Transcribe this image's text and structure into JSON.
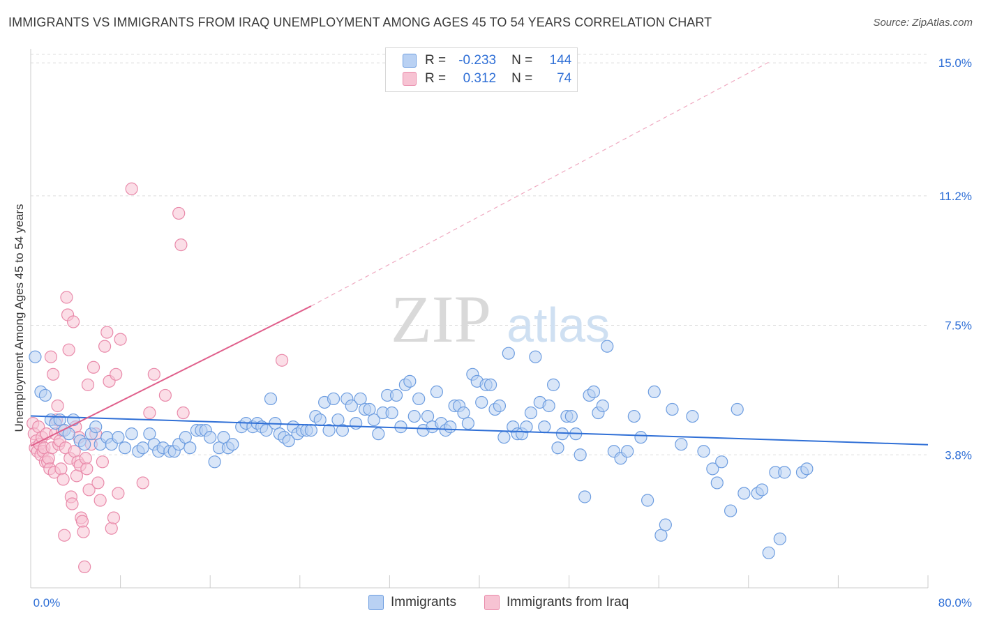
{
  "title": "IMMIGRANTS VS IMMIGRANTS FROM IRAQ UNEMPLOYMENT AMONG AGES 45 TO 54 YEARS CORRELATION CHART",
  "source": "Source: ZipAtlas.com",
  "watermark": {
    "zip": "ZIP",
    "atlas": "atlas"
  },
  "legend": {
    "r_label": "R =",
    "n_label": "N =",
    "immigrants": {
      "r": "-0.233",
      "n": "144"
    },
    "iraq": {
      "r": "0.312",
      "n": "74"
    }
  },
  "colors": {
    "blue_fill": "#b9d1f3",
    "blue_stroke": "#6d9de0",
    "blue_line": "#2f6fd6",
    "pink_fill": "#f7c3d3",
    "pink_stroke": "#e98aaa",
    "pink_line": "#e0608c",
    "tick_text": "#2f6fd6",
    "grid": "#dcdcdc"
  },
  "chart_data": {
    "type": "scatter",
    "title": "IMMIGRANTS VS IMMIGRANTS FROM IRAQ UNEMPLOYMENT AMONG AGES 45 TO 54 YEARS CORRELATION CHART",
    "xlabel": "",
    "ylabel": "Unemployment Among Ages 45 to 54 years",
    "xlim": [
      0,
      80
    ],
    "ylim": [
      0.0,
      15.4
    ],
    "x_tick_labels": [
      "0.0%",
      "80.0%"
    ],
    "y_ticks": [
      3.8,
      7.5,
      11.2,
      15.0
    ],
    "y_tick_labels": [
      "3.8%",
      "7.5%",
      "11.2%",
      "15.0%"
    ],
    "grid": true,
    "series": [
      {
        "name": "Immigrants",
        "r": -0.233,
        "n": 144,
        "trend": {
          "x": [
            0,
            80
          ],
          "y": [
            4.91,
            4.09
          ]
        },
        "points": [
          [
            0.4,
            6.6
          ],
          [
            0.9,
            5.6
          ],
          [
            1.3,
            5.5
          ],
          [
            1.8,
            4.8
          ],
          [
            2.2,
            4.7
          ],
          [
            2.6,
            4.8
          ],
          [
            3.0,
            4.5
          ],
          [
            3.4,
            4.4
          ],
          [
            3.8,
            4.8
          ],
          [
            4.4,
            4.2
          ],
          [
            4.8,
            4.1
          ],
          [
            5.4,
            4.4
          ],
          [
            5.8,
            4.6
          ],
          [
            6.2,
            4.1
          ],
          [
            6.8,
            4.3
          ],
          [
            7.2,
            4.1
          ],
          [
            7.8,
            4.3
          ],
          [
            8.4,
            4.0
          ],
          [
            9.0,
            4.4
          ],
          [
            9.6,
            3.9
          ],
          [
            10.0,
            4.0
          ],
          [
            10.6,
            4.4
          ],
          [
            11.0,
            4.1
          ],
          [
            11.4,
            3.9
          ],
          [
            11.8,
            4.0
          ],
          [
            12.4,
            3.9
          ],
          [
            12.8,
            3.9
          ],
          [
            13.2,
            4.1
          ],
          [
            13.8,
            4.3
          ],
          [
            14.2,
            4.0
          ],
          [
            14.8,
            4.5
          ],
          [
            15.2,
            4.5
          ],
          [
            15.6,
            4.5
          ],
          [
            16.0,
            4.3
          ],
          [
            16.4,
            3.6
          ],
          [
            16.8,
            4.0
          ],
          [
            17.2,
            4.3
          ],
          [
            17.6,
            4.0
          ],
          [
            18.0,
            4.1
          ],
          [
            18.8,
            4.6
          ],
          [
            19.2,
            4.7
          ],
          [
            19.8,
            4.6
          ],
          [
            20.2,
            4.7
          ],
          [
            20.6,
            4.6
          ],
          [
            21.0,
            4.5
          ],
          [
            21.4,
            5.4
          ],
          [
            21.8,
            4.7
          ],
          [
            22.2,
            4.4
          ],
          [
            22.6,
            4.3
          ],
          [
            23.0,
            4.2
          ],
          [
            23.4,
            4.6
          ],
          [
            23.8,
            4.4
          ],
          [
            24.2,
            4.5
          ],
          [
            24.6,
            4.5
          ],
          [
            25.0,
            4.5
          ],
          [
            25.4,
            4.9
          ],
          [
            25.8,
            4.8
          ],
          [
            26.2,
            5.3
          ],
          [
            26.6,
            4.5
          ],
          [
            27.0,
            5.4
          ],
          [
            27.4,
            4.8
          ],
          [
            27.8,
            4.5
          ],
          [
            28.2,
            5.4
          ],
          [
            28.6,
            5.2
          ],
          [
            29.0,
            4.7
          ],
          [
            29.4,
            5.4
          ],
          [
            29.8,
            5.1
          ],
          [
            30.2,
            5.1
          ],
          [
            30.6,
            4.8
          ],
          [
            31.0,
            4.4
          ],
          [
            31.4,
            5.0
          ],
          [
            31.8,
            5.5
          ],
          [
            32.2,
            5.0
          ],
          [
            32.6,
            5.5
          ],
          [
            33.0,
            4.6
          ],
          [
            33.4,
            5.8
          ],
          [
            33.8,
            5.9
          ],
          [
            34.2,
            4.9
          ],
          [
            34.6,
            5.4
          ],
          [
            35.0,
            4.5
          ],
          [
            35.4,
            4.9
          ],
          [
            35.8,
            4.6
          ],
          [
            36.2,
            5.6
          ],
          [
            36.6,
            4.7
          ],
          [
            37.0,
            4.5
          ],
          [
            37.4,
            4.6
          ],
          [
            37.8,
            5.2
          ],
          [
            38.2,
            5.2
          ],
          [
            38.6,
            5.0
          ],
          [
            39.0,
            4.7
          ],
          [
            39.4,
            6.1
          ],
          [
            39.8,
            5.9
          ],
          [
            40.2,
            5.3
          ],
          [
            40.6,
            5.8
          ],
          [
            41.0,
            5.8
          ],
          [
            41.4,
            5.1
          ],
          [
            41.8,
            5.2
          ],
          [
            42.2,
            4.3
          ],
          [
            42.6,
            6.7
          ],
          [
            43.0,
            4.6
          ],
          [
            43.4,
            4.4
          ],
          [
            43.8,
            4.4
          ],
          [
            44.2,
            4.6
          ],
          [
            44.6,
            5.0
          ],
          [
            45.0,
            6.6
          ],
          [
            45.4,
            5.3
          ],
          [
            45.8,
            4.6
          ],
          [
            46.2,
            5.2
          ],
          [
            46.6,
            5.8
          ],
          [
            47.0,
            4.0
          ],
          [
            47.4,
            4.4
          ],
          [
            47.8,
            4.9
          ],
          [
            48.2,
            4.9
          ],
          [
            48.6,
            4.4
          ],
          [
            49.0,
            3.8
          ],
          [
            49.4,
            2.6
          ],
          [
            49.8,
            5.5
          ],
          [
            50.2,
            5.6
          ],
          [
            50.6,
            5.0
          ],
          [
            51.0,
            5.2
          ],
          [
            51.4,
            6.9
          ],
          [
            52.0,
            3.9
          ],
          [
            52.6,
            3.7
          ],
          [
            53.2,
            3.9
          ],
          [
            53.8,
            4.9
          ],
          [
            54.4,
            4.3
          ],
          [
            55.0,
            2.5
          ],
          [
            55.6,
            5.6
          ],
          [
            56.2,
            1.5
          ],
          [
            56.6,
            1.8
          ],
          [
            57.2,
            5.1
          ],
          [
            58.0,
            4.1
          ],
          [
            59.0,
            4.9
          ],
          [
            60.0,
            3.9
          ],
          [
            60.8,
            3.4
          ],
          [
            61.2,
            3.0
          ],
          [
            61.6,
            3.6
          ],
          [
            62.4,
            2.2
          ],
          [
            63.0,
            5.1
          ],
          [
            63.6,
            2.7
          ],
          [
            64.8,
            2.7
          ],
          [
            65.2,
            2.8
          ],
          [
            65.8,
            1.0
          ],
          [
            66.4,
            3.3
          ],
          [
            66.8,
            1.4
          ],
          [
            67.2,
            3.3
          ],
          [
            68.8,
            3.3
          ],
          [
            69.2,
            3.4
          ]
        ]
      },
      {
        "name": "Immigrants from Iraq",
        "r": 0.312,
        "n": 74,
        "trend": {
          "x": [
            0,
            25
          ],
          "y": [
            4.05,
            8.05
          ]
        },
        "trend_extension": {
          "x": [
            25,
            66
          ],
          "y": [
            8.05,
            15.05
          ]
        },
        "points": [
          [
            0.2,
            4.7
          ],
          [
            0.3,
            4.4
          ],
          [
            0.4,
            4.0
          ],
          [
            0.5,
            4.2
          ],
          [
            0.6,
            3.9
          ],
          [
            0.7,
            4.6
          ],
          [
            0.8,
            4.1
          ],
          [
            0.9,
            3.8
          ],
          [
            1.0,
            4.3
          ],
          [
            1.1,
            3.9
          ],
          [
            1.2,
            4.0
          ],
          [
            1.3,
            3.6
          ],
          [
            1.4,
            4.4
          ],
          [
            1.5,
            3.6
          ],
          [
            1.6,
            3.7
          ],
          [
            1.7,
            3.4
          ],
          [
            1.8,
            6.6
          ],
          [
            1.9,
            4.0
          ],
          [
            2.0,
            6.1
          ],
          [
            2.1,
            3.3
          ],
          [
            2.2,
            4.4
          ],
          [
            2.3,
            4.8
          ],
          [
            2.4,
            5.2
          ],
          [
            2.5,
            4.1
          ],
          [
            2.6,
            4.2
          ],
          [
            2.7,
            3.4
          ],
          [
            2.8,
            4.5
          ],
          [
            2.9,
            3.1
          ],
          [
            3.0,
            1.5
          ],
          [
            3.1,
            4.0
          ],
          [
            3.2,
            8.3
          ],
          [
            3.3,
            7.8
          ],
          [
            3.4,
            6.8
          ],
          [
            3.5,
            3.7
          ],
          [
            3.6,
            2.6
          ],
          [
            3.7,
            2.4
          ],
          [
            3.8,
            7.6
          ],
          [
            3.9,
            3.9
          ],
          [
            4.0,
            4.6
          ],
          [
            4.1,
            3.2
          ],
          [
            4.2,
            3.6
          ],
          [
            4.3,
            4.3
          ],
          [
            4.4,
            3.5
          ],
          [
            4.5,
            2.0
          ],
          [
            4.6,
            1.9
          ],
          [
            4.7,
            1.6
          ],
          [
            4.8,
            0.6
          ],
          [
            4.9,
            3.7
          ],
          [
            5.0,
            3.4
          ],
          [
            5.1,
            5.8
          ],
          [
            5.2,
            2.8
          ],
          [
            5.4,
            4.1
          ],
          [
            5.6,
            6.3
          ],
          [
            5.8,
            4.4
          ],
          [
            6.0,
            3.0
          ],
          [
            6.2,
            2.5
          ],
          [
            6.4,
            3.6
          ],
          [
            6.6,
            6.9
          ],
          [
            6.8,
            7.3
          ],
          [
            7.0,
            5.9
          ],
          [
            7.2,
            1.7
          ],
          [
            7.4,
            2.0
          ],
          [
            7.6,
            6.1
          ],
          [
            7.8,
            2.7
          ],
          [
            8.0,
            7.1
          ],
          [
            9.0,
            11.4
          ],
          [
            10.0,
            3.0
          ],
          [
            10.6,
            5.0
          ],
          [
            11.0,
            6.1
          ],
          [
            12.0,
            5.5
          ],
          [
            13.2,
            10.7
          ],
          [
            13.4,
            9.8
          ],
          [
            13.6,
            5.0
          ],
          [
            22.4,
            6.5
          ]
        ]
      }
    ]
  }
}
